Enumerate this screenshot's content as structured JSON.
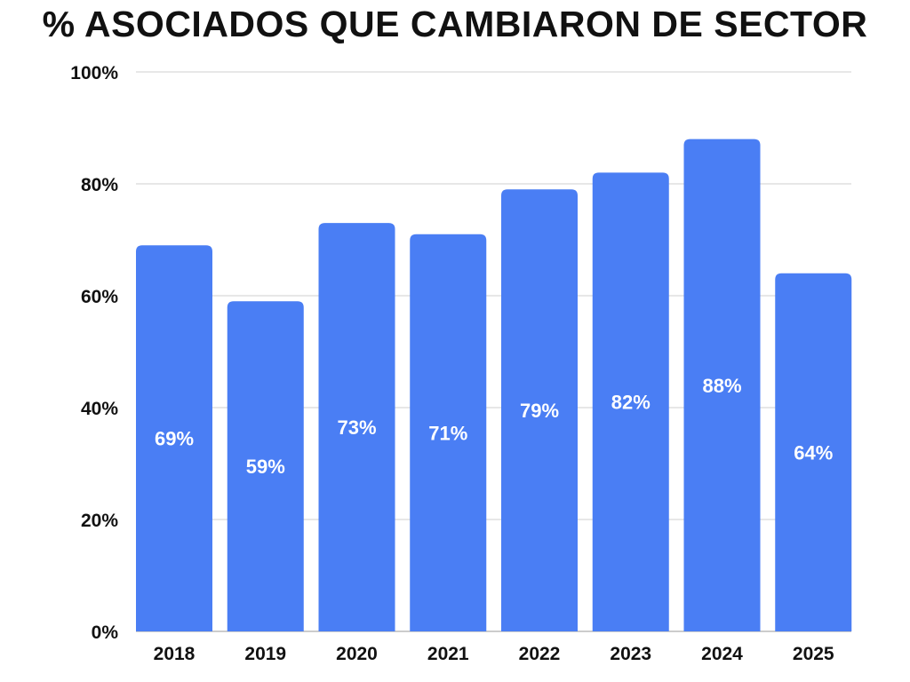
{
  "chart_data": {
    "type": "bar",
    "title": "% ASOCIADOS QUE CAMBIARON DE SECTOR",
    "xlabel": "",
    "ylabel": "",
    "categories": [
      "2018",
      "2019",
      "2020",
      "2021",
      "2022",
      "2023",
      "2024",
      "2025"
    ],
    "values": [
      69,
      59,
      73,
      71,
      79,
      82,
      88,
      64
    ],
    "data_labels": [
      "69%",
      "59%",
      "73%",
      "71%",
      "79%",
      "82%",
      "88%",
      "64%"
    ],
    "ylim": [
      0,
      100
    ],
    "yticks": [
      0,
      20,
      40,
      60,
      80,
      100
    ],
    "ytick_labels": [
      "0%",
      "20%",
      "40%",
      "60%",
      "80%",
      "100%"
    ],
    "grid": true,
    "bar_color": "#4a7ef4"
  }
}
